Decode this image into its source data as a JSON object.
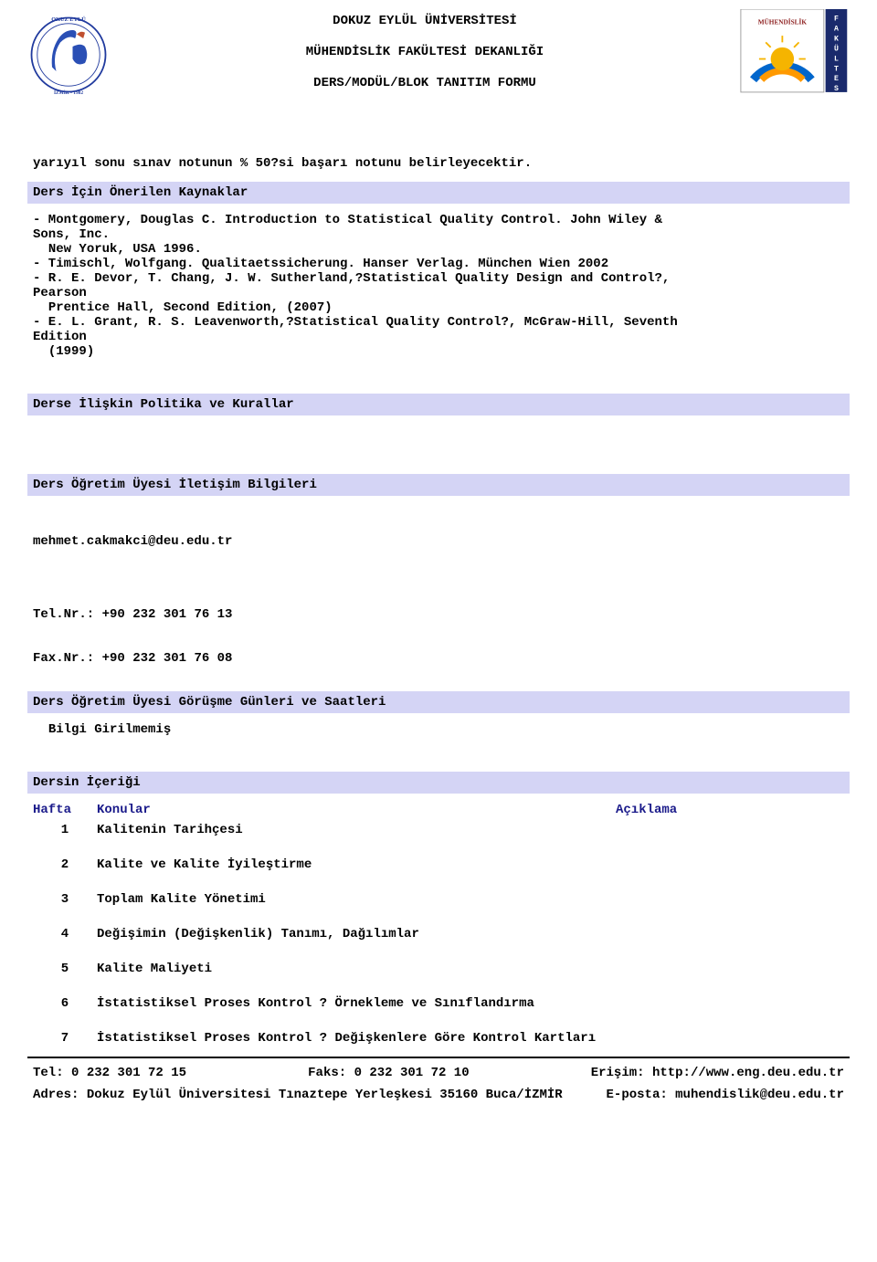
{
  "header": {
    "university": "DOKUZ EYLÜL ÜNİVERSİTESİ",
    "faculty": "MÜHENDİSLİK FAKÜLTESİ DEKANLIĞI",
    "form": "DERS/MODÜL/BLOK TANITIM FORMU"
  },
  "exam_note": "yarıyıl sonu sınav notunun % 50?si başarı notunu belirleyecektir.",
  "resources_title": "Ders İçin Önerilen Kaynaklar",
  "resources_body": "- Montgomery, Douglas C. Introduction to Statistical Quality Control. John Wiley &\nSons, Inc.\n  New Yoruk, USA 1996.\n- Timischl, Wolfgang. Qualitaetssicherung. Hanser Verlag. München Wien 2002\n- R. E. Devor, T. Chang, J. W. Sutherland,?Statistical Quality Design and Control?,\nPearson\n  Prentice Hall, Second Edition, (2007)\n- E. L. Grant, R. S. Leavenworth,?Statistical Quality Control?, McGraw-Hill, Seventh\nEdition\n  (1999)",
  "policies_title": "Derse İlişkin Politika ve Kurallar",
  "contact_title": "Ders Öğretim Üyesi İletişim Bilgileri",
  "contact_email": "mehmet.cakmakci@deu.edu.tr",
  "contact_tel_label": "Tel.Nr.: ",
  "contact_tel": "+90 232 301 76 13",
  "contact_fax_label": "Fax.Nr.: ",
  "contact_fax": "+90 232 301 76 08",
  "office_hours_title": "Ders Öğretim Üyesi Görüşme Günleri ve Saatleri",
  "office_hours_body": "  Bilgi Girilmemiş",
  "content_title": "Dersin İçeriği",
  "content_cols": {
    "week": "Hafta",
    "topic": "Konular",
    "desc": "Açıklama"
  },
  "weeks": [
    {
      "n": "1",
      "topic": "Kalitenin Tarihçesi"
    },
    {
      "n": "2",
      "topic": "Kalite ve Kalite İyileştirme"
    },
    {
      "n": "3",
      "topic": "Toplam Kalite Yönetimi"
    },
    {
      "n": "4",
      "topic": "Değişimin (Değişkenlik) Tanımı, Dağılımlar"
    },
    {
      "n": "5",
      "topic": "Kalite Maliyeti"
    },
    {
      "n": "6",
      "topic": "İstatistiksel Proses Kontrol ? Örnekleme ve Sınıflandırma"
    },
    {
      "n": "7",
      "topic": "İstatistiksel Proses Kontrol ? Değişkenlere Göre Kontrol Kartları"
    }
  ],
  "footer": {
    "tel_label": "Tel: ",
    "tel": "0 232 301 72 15",
    "fax_label": "Faks: ",
    "fax": "0 232 301 72 10",
    "web_label": "Erişim: ",
    "web": "http://www.eng.deu.edu.tr",
    "addr_label": "Adres: ",
    "addr": "Dokuz Eylül Üniversitesi Tınaztepe Yerleşkesi 35160 Buca/İZMİR",
    "email_label": "E-posta: ",
    "email": "muhendislik@deu.edu.tr"
  },
  "logo_colors": {
    "left_ring": "#203a9e",
    "left_figure": "#2a4fb5",
    "left_accent": "#c05030",
    "right_bg": "#ffffff",
    "right_arc_blue": "#0066cc",
    "right_arc_orange": "#ff9900",
    "right_sun": "#f5b400",
    "right_strip": "#1a2a6c"
  }
}
